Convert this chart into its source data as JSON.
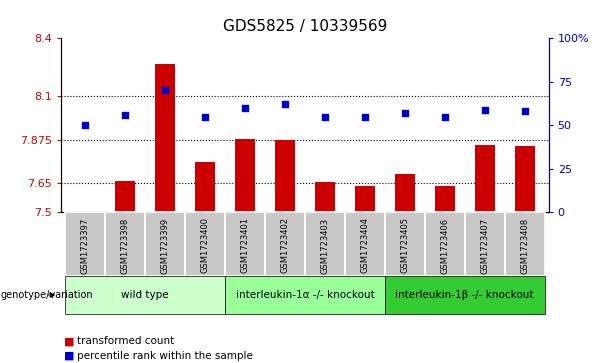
{
  "title": "GDS5825 / 10339569",
  "samples": [
    "GSM1723397",
    "GSM1723398",
    "GSM1723399",
    "GSM1723400",
    "GSM1723401",
    "GSM1723402",
    "GSM1723403",
    "GSM1723404",
    "GSM1723405",
    "GSM1723406",
    "GSM1723407",
    "GSM1723408"
  ],
  "bar_values": [
    7.504,
    7.662,
    8.265,
    7.758,
    7.878,
    7.874,
    7.658,
    7.638,
    7.699,
    7.634,
    7.847,
    7.844
  ],
  "dot_values": [
    50,
    56,
    70,
    55,
    60,
    62,
    55,
    55,
    57,
    55,
    59,
    58
  ],
  "bar_color": "#cc0000",
  "dot_color": "#0000cc",
  "ylim_left": [
    7.5,
    8.4
  ],
  "ylim_right": [
    0,
    100
  ],
  "yticks_left": [
    7.5,
    7.65,
    7.875,
    8.1,
    8.4
  ],
  "ytick_labels_left": [
    "7.5",
    "7.65",
    "7.875",
    "8.1",
    "8.4"
  ],
  "yticks_right": [
    0,
    25,
    50,
    75,
    100
  ],
  "ytick_labels_right": [
    "0",
    "25",
    "50",
    "75",
    "100%"
  ],
  "grid_ticks": [
    7.65,
    7.875,
    8.1
  ],
  "groups": [
    {
      "label": "wild type",
      "start": 0,
      "end": 3,
      "color": "#ccffcc"
    },
    {
      "label": "interleukin-1α -/- knockout",
      "start": 4,
      "end": 7,
      "color": "#99ff99"
    },
    {
      "label": "interleukin-1β -/- knockout",
      "start": 8,
      "end": 11,
      "color": "#33cc33"
    }
  ],
  "legend_items": [
    {
      "label": "transformed count",
      "color": "#cc0000"
    },
    {
      "label": "percentile rank within the sample",
      "color": "#0000cc"
    }
  ],
  "genotype_label": "genotype/variation",
  "bar_width": 0.5
}
